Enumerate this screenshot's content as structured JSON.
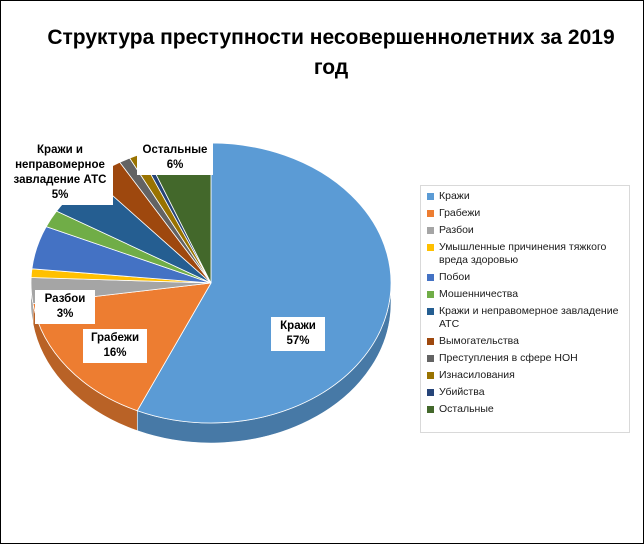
{
  "chart_data": {
    "type": "pie",
    "title": "Структура преступности несовершеннолетних за 2019 год",
    "slices": [
      {
        "label": "Кражи",
        "value": 57,
        "color": "#5b9bd5"
      },
      {
        "label": "Грабежи",
        "value": 16,
        "color": "#ed7d31"
      },
      {
        "label": "Разбои",
        "value": 3,
        "color": "#a5a5a5"
      },
      {
        "label": "Умышленные причинения тяжкого вреда здоровью",
        "value": 1,
        "color": "#ffc000"
      },
      {
        "label": "Побои",
        "value": 5,
        "color": "#4472c4"
      },
      {
        "label": "Мошенничества",
        "value": 2,
        "color": "#70ad47"
      },
      {
        "label": "Кражи и неправомерное завладение АТС",
        "value": 5,
        "color": "#255e91"
      },
      {
        "label": "Вымогательства",
        "value": 3,
        "color": "#9e480e"
      },
      {
        "label": "Преступления в сфере НОН",
        "value": 1,
        "color": "#636363"
      },
      {
        "label": "Изнасилования",
        "value": 1,
        "color": "#997300"
      },
      {
        "label": "Убийства",
        "value": 0.5,
        "color": "#264478"
      },
      {
        "label": "Остальные",
        "value": 6,
        "color": "#43682b"
      }
    ],
    "data_labels": [
      {
        "name": "Кражи",
        "percent": "57%"
      },
      {
        "name": "Грабежи",
        "percent": "16%"
      },
      {
        "name": "Разбои",
        "percent": "3%"
      },
      {
        "name": "Кражи и неправомерное завладение АТС",
        "percent": "5%"
      },
      {
        "name": "Остальные",
        "percent": "6%"
      }
    ],
    "legend_position": "right"
  }
}
